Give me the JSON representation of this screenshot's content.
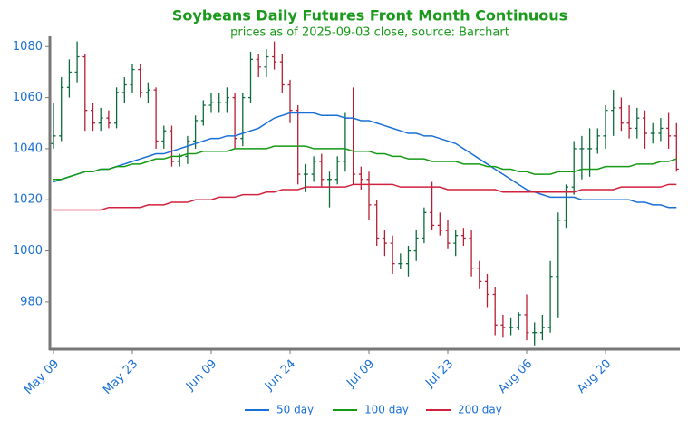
{
  "chart_data": {
    "type": "ohlc",
    "title": "Soybeans Daily Futures Front Month Continuous",
    "subtitle": "prices as of 2025-09-03 close, source: Barchart",
    "categories": [
      "May 09",
      null,
      null,
      null,
      null,
      null,
      null,
      null,
      null,
      null,
      "May 23",
      null,
      null,
      null,
      null,
      null,
      null,
      null,
      null,
      null,
      "Jun 09",
      null,
      null,
      null,
      null,
      null,
      null,
      null,
      null,
      null,
      "Jun 24",
      null,
      null,
      null,
      null,
      null,
      null,
      null,
      null,
      null,
      "Jul 09",
      null,
      null,
      null,
      null,
      null,
      null,
      null,
      null,
      null,
      "Jul 23",
      null,
      null,
      null,
      null,
      null,
      null,
      null,
      null,
      null,
      "Aug 06",
      null,
      null,
      null,
      null,
      null,
      null,
      null,
      null,
      null,
      "Aug 20",
      null,
      null,
      null,
      null,
      null,
      null,
      null,
      null,
      null
    ],
    "open": [
      1042,
      1045,
      1064,
      1070,
      1076,
      1055,
      1050,
      1052,
      1050,
      1062,
      1065,
      1071,
      1062,
      1063,
      1043,
      1047,
      1035,
      1037,
      1043,
      1051,
      1057,
      1058,
      1058,
      1060,
      1044,
      1060,
      1075,
      1072,
      1076,
      1074,
      1065,
      1055,
      1030,
      1030,
      1035,
      1028,
      1028,
      1035,
      1052,
      1030,
      1028,
      1018,
      1005,
      1003,
      995,
      995,
      1000,
      1005,
      1015,
      1010,
      1008,
      1003,
      1006,
      1005,
      993,
      988,
      983,
      971,
      970,
      970,
      975,
      968,
      968,
      970,
      990,
      1012,
      1025,
      1040,
      1040,
      1040,
      1045,
      1055,
      1056,
      1050,
      1048,
      1052,
      1046,
      1046,
      1048,
      1045
    ],
    "high": [
      1058,
      1068,
      1075,
      1082,
      1077,
      1058,
      1056,
      1055,
      1064,
      1068,
      1073,
      1073,
      1066,
      1064,
      1049,
      1049,
      1038,
      1045,
      1053,
      1059,
      1062,
      1062,
      1064,
      1062,
      1062,
      1078,
      1077,
      1079,
      1082,
      1077,
      1067,
      1057,
      1034,
      1037,
      1038,
      1031,
      1037,
      1054,
      1064,
      1033,
      1031,
      1020,
      1008,
      1006,
      999,
      1002,
      1008,
      1017,
      1027,
      1015,
      1012,
      1008,
      1009,
      1008,
      996,
      991,
      986,
      975,
      974,
      976,
      983,
      972,
      975,
      996,
      1015,
      1026,
      1043,
      1045,
      1048,
      1048,
      1057,
      1063,
      1060,
      1057,
      1056,
      1055,
      1050,
      1052,
      1054,
      1050
    ],
    "low": [
      1040,
      1043,
      1060,
      1066,
      1047,
      1047,
      1047,
      1048,
      1048,
      1058,
      1062,
      1060,
      1058,
      1040,
      1040,
      1033,
      1033,
      1034,
      1040,
      1049,
      1054,
      1054,
      1054,
      1040,
      1041,
      1058,
      1068,
      1068,
      1071,
      1062,
      1050,
      1026,
      1023,
      1027,
      1025,
      1017,
      1026,
      1031,
      1026,
      1024,
      1012,
      1002,
      998,
      991,
      993,
      990,
      996,
      1003,
      1008,
      1006,
      1001,
      998,
      1002,
      990,
      985,
      978,
      967,
      966,
      967,
      969,
      965,
      963,
      965,
      968,
      974,
      1009,
      1022,
      1028,
      1029,
      1038,
      1040,
      1045,
      1047,
      1044,
      1044,
      1040,
      1042,
      1043,
      1040,
      1031
    ],
    "close": [
      1045,
      1064,
      1070,
      1076,
      1055,
      1050,
      1052,
      1050,
      1062,
      1065,
      1071,
      1062,
      1063,
      1043,
      1047,
      1035,
      1037,
      1043,
      1051,
      1057,
      1058,
      1058,
      1060,
      1044,
      1060,
      1075,
      1072,
      1076,
      1074,
      1065,
      1055,
      1030,
      1030,
      1035,
      1028,
      1028,
      1035,
      1052,
      1030,
      1028,
      1018,
      1005,
      1003,
      995,
      995,
      1000,
      1005,
      1015,
      1010,
      1008,
      1003,
      1006,
      1005,
      993,
      988,
      983,
      971,
      970,
      970,
      975,
      968,
      968,
      970,
      990,
      1012,
      1025,
      1040,
      1040,
      1040,
      1045,
      1055,
      1056,
      1050,
      1048,
      1052,
      1046,
      1046,
      1048,
      1045,
      1032
    ],
    "up_color": "#0b6b3a",
    "down_color": "#b51f33",
    "lines": [
      {
        "name": "50 day",
        "color": "#1a6fd6",
        "values": [
          1027,
          1028,
          1029,
          1030,
          1031,
          1031,
          1032,
          1032,
          1033,
          1034,
          1035,
          1036,
          1037,
          1038,
          1038,
          1039,
          1040,
          1041,
          1042,
          1043,
          1044,
          1044,
          1045,
          1045,
          1046,
          1047,
          1048,
          1050,
          1052,
          1053,
          1054,
          1054,
          1054,
          1054,
          1053,
          1053,
          1053,
          1052,
          1052,
          1051,
          1051,
          1050,
          1049,
          1048,
          1047,
          1046,
          1046,
          1045,
          1045,
          1044,
          1043,
          1042,
          1040,
          1038,
          1036,
          1034,
          1032,
          1030,
          1028,
          1026,
          1024,
          1023,
          1022,
          1021,
          1021,
          1021,
          1021,
          1020,
          1020,
          1020,
          1020,
          1020,
          1020,
          1020,
          1019,
          1019,
          1018,
          1018,
          1017,
          1017
        ]
      },
      {
        "name": "100 day",
        "color": "#159a15",
        "values": [
          1028,
          1028,
          1029,
          1030,
          1031,
          1031,
          1032,
          1032,
          1033,
          1033,
          1034,
          1034,
          1035,
          1036,
          1036,
          1037,
          1037,
          1038,
          1038,
          1039,
          1039,
          1039,
          1039,
          1040,
          1040,
          1040,
          1040,
          1040,
          1041,
          1041,
          1041,
          1041,
          1041,
          1040,
          1040,
          1040,
          1040,
          1040,
          1039,
          1039,
          1039,
          1038,
          1038,
          1037,
          1037,
          1036,
          1036,
          1036,
          1035,
          1035,
          1035,
          1035,
          1034,
          1034,
          1034,
          1033,
          1033,
          1032,
          1032,
          1031,
          1031,
          1030,
          1030,
          1030,
          1031,
          1031,
          1031,
          1032,
          1032,
          1032,
          1033,
          1033,
          1033,
          1033,
          1034,
          1034,
          1034,
          1035,
          1035,
          1036
        ]
      },
      {
        "name": "200 day",
        "color": "#d0223c",
        "values": [
          1016,
          1016,
          1016,
          1016,
          1016,
          1016,
          1016,
          1017,
          1017,
          1017,
          1017,
          1017,
          1018,
          1018,
          1018,
          1019,
          1019,
          1019,
          1020,
          1020,
          1020,
          1021,
          1021,
          1021,
          1022,
          1022,
          1022,
          1023,
          1023,
          1024,
          1024,
          1024,
          1025,
          1025,
          1025,
          1025,
          1025,
          1025,
          1026,
          1026,
          1026,
          1026,
          1026,
          1026,
          1025,
          1025,
          1025,
          1025,
          1025,
          1025,
          1024,
          1024,
          1024,
          1024,
          1024,
          1024,
          1024,
          1023,
          1023,
          1023,
          1023,
          1023,
          1023,
          1023,
          1023,
          1023,
          1023,
          1024,
          1024,
          1024,
          1024,
          1024,
          1025,
          1025,
          1025,
          1025,
          1025,
          1025,
          1026,
          1026
        ]
      }
    ],
    "ylim": [
      961.5,
      1084
    ],
    "yticks": [
      980,
      1000,
      1020,
      1040,
      1060,
      1080
    ],
    "legend": "bottom"
  }
}
